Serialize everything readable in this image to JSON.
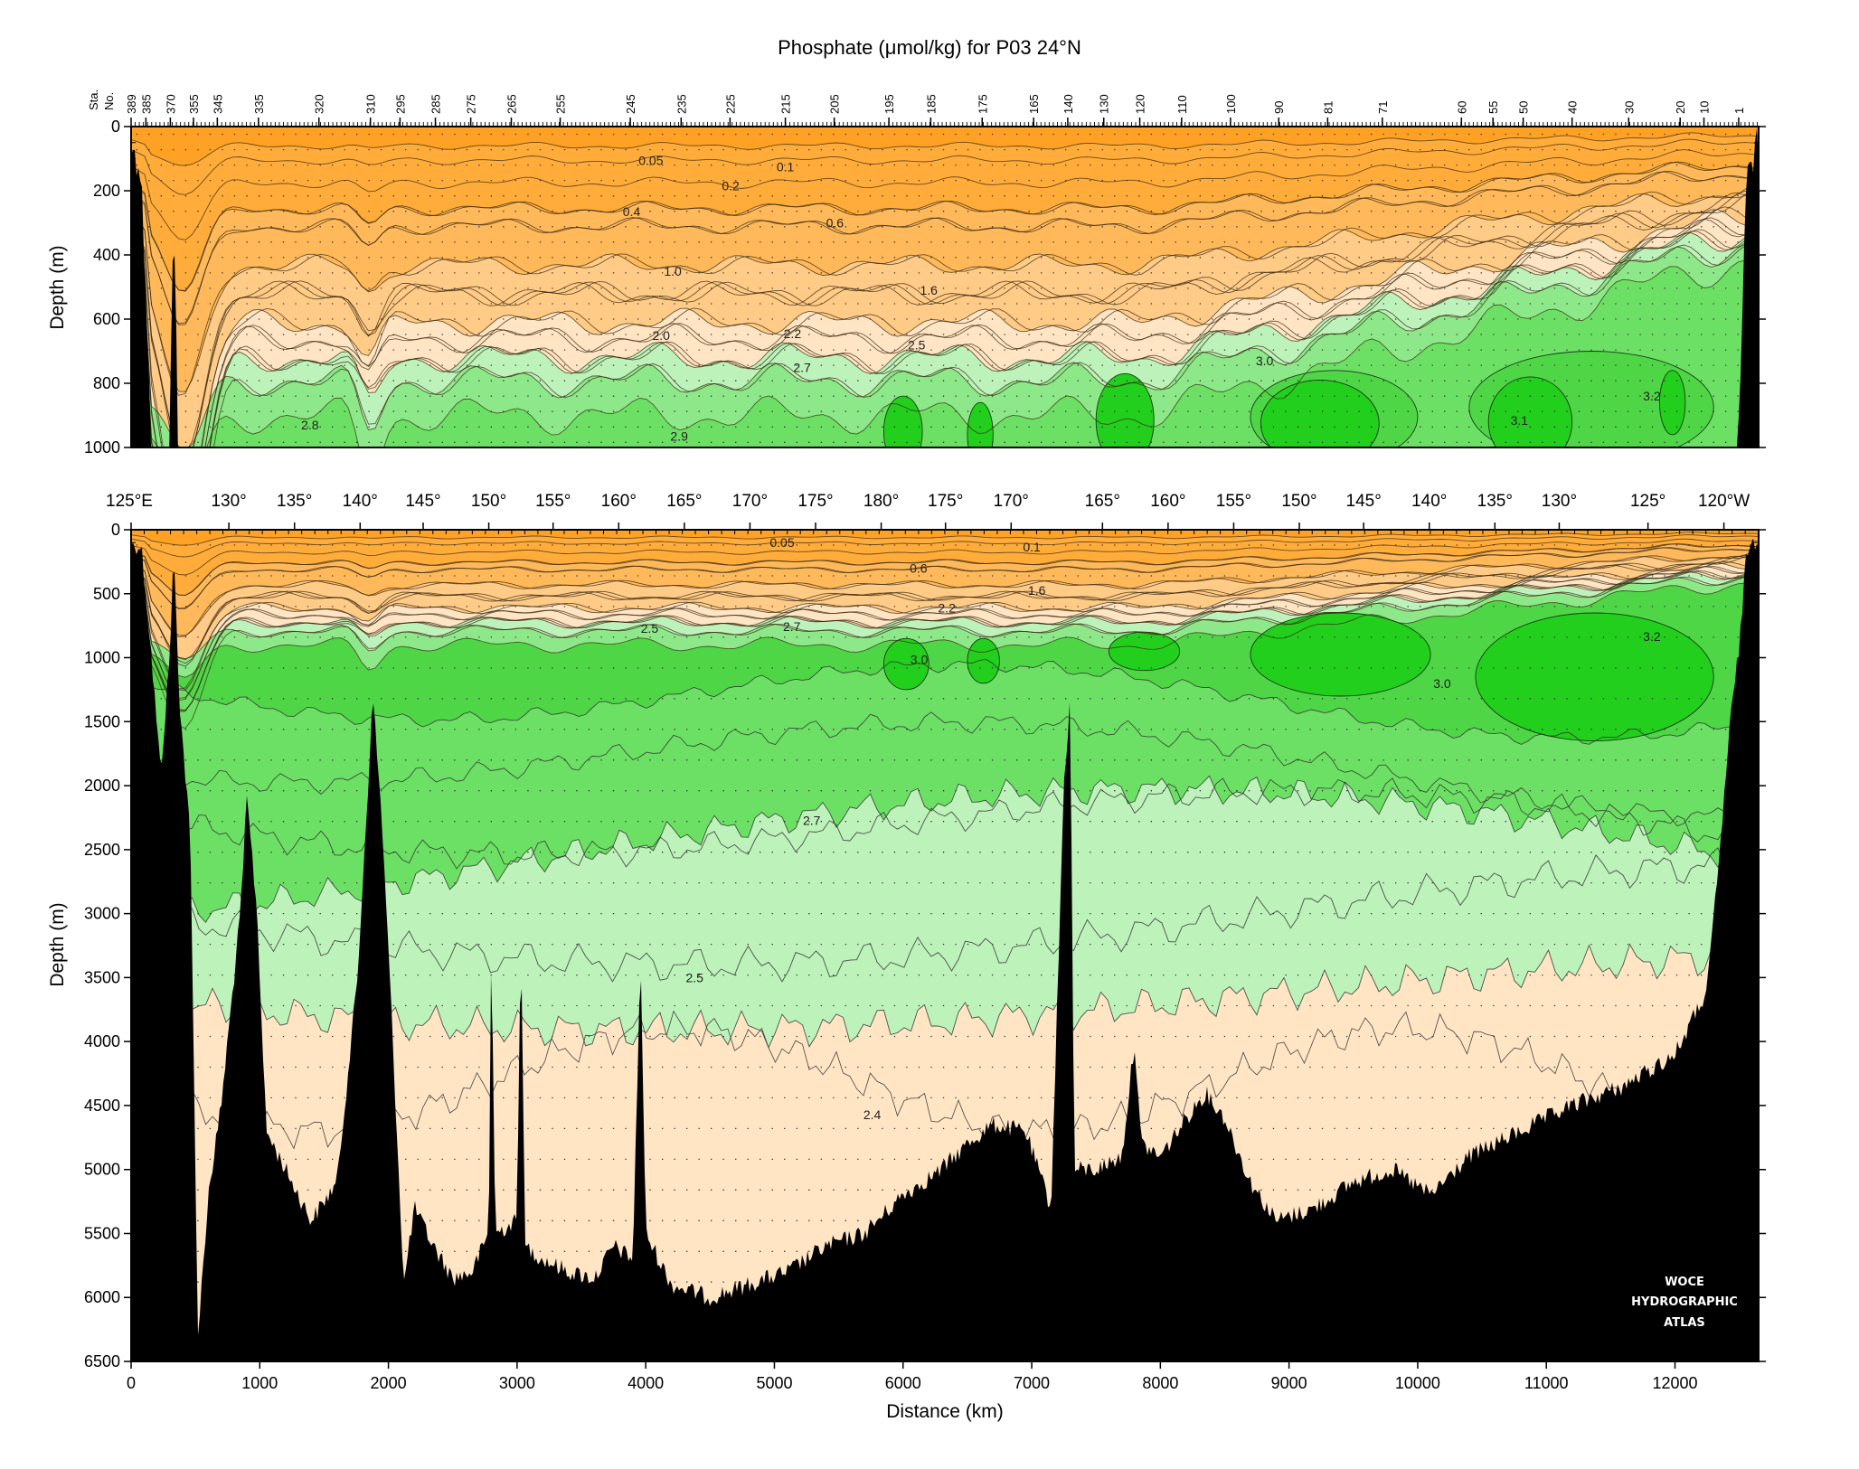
{
  "figure": {
    "title": "Phosphate (μmol/kg) for P03 24°N",
    "watermark": [
      "WOCE",
      "HYDROGRAPHIC",
      "ATLAS"
    ]
  },
  "chart_data": [
    {
      "type": "heatmap",
      "panel": "upper",
      "title": "Phosphate (μmol/kg) for P03 24°N",
      "ylabel": "Depth (m)",
      "ylim": [
        1000,
        0
      ],
      "xlim": [
        0,
        12650
      ],
      "y_ticks": [
        0,
        200,
        400,
        600,
        800,
        1000
      ],
      "station_axis_label": [
        "Sta.",
        "No."
      ],
      "stations": [
        {
          "label": "389",
          "km": 0
        },
        {
          "label": "385",
          "km": 115
        },
        {
          "label": "370",
          "km": 305
        },
        {
          "label": "355",
          "km": 485
        },
        {
          "label": "345",
          "km": 670
        },
        {
          "label": "335",
          "km": 990
        },
        {
          "label": "320",
          "km": 1460
        },
        {
          "label": "310",
          "km": 1860
        },
        {
          "label": "295",
          "km": 2090
        },
        {
          "label": "285",
          "km": 2365
        },
        {
          "label": "275",
          "km": 2640
        },
        {
          "label": "265",
          "km": 2955
        },
        {
          "label": "255",
          "km": 3335
        },
        {
          "label": "245",
          "km": 3880
        },
        {
          "label": "235",
          "km": 4275
        },
        {
          "label": "225",
          "km": 4655
        },
        {
          "label": "215",
          "km": 5085
        },
        {
          "label": "205",
          "km": 5465
        },
        {
          "label": "195",
          "km": 5890
        },
        {
          "label": "185",
          "km": 6215
        },
        {
          "label": "175",
          "km": 6615
        },
        {
          "label": "165",
          "km": 7015
        },
        {
          "label": "140",
          "km": 7280
        },
        {
          "label": "130",
          "km": 7560
        },
        {
          "label": "120",
          "km": 7840
        },
        {
          "label": "110",
          "km": 8165
        },
        {
          "label": "100",
          "km": 8545
        },
        {
          "label": "90",
          "km": 8920
        },
        {
          "label": "81",
          "km": 9300
        },
        {
          "label": "71",
          "km": 9725
        },
        {
          "label": "60",
          "km": 10340
        },
        {
          "label": "55",
          "km": 10585
        },
        {
          "label": "50",
          "km": 10820
        },
        {
          "label": "40",
          "km": 11200
        },
        {
          "label": "30",
          "km": 11640
        },
        {
          "label": "20",
          "km": 12040
        },
        {
          "label": "10",
          "km": 12225
        },
        {
          "label": "1",
          "km": 12495
        }
      ],
      "contour_labels": [
        {
          "text": "0.05",
          "km": 4040,
          "depth": 105
        },
        {
          "text": "0.1",
          "km": 5085,
          "depth": 125
        },
        {
          "text": "0.2",
          "km": 4660,
          "depth": 185
        },
        {
          "text": "0.4",
          "km": 3890,
          "depth": 265
        },
        {
          "text": "0.6",
          "km": 5470,
          "depth": 300
        },
        {
          "text": "1.0",
          "km": 4210,
          "depth": 450
        },
        {
          "text": "1.6",
          "km": 6200,
          "depth": 510
        },
        {
          "text": "2.0",
          "km": 4120,
          "depth": 650
        },
        {
          "text": "2.2",
          "km": 5140,
          "depth": 645
        },
        {
          "text": "2.5",
          "km": 6105,
          "depth": 680
        },
        {
          "text": "2.7",
          "km": 5215,
          "depth": 750
        },
        {
          "text": "3.0",
          "km": 8810,
          "depth": 730
        },
        {
          "text": "2.8",
          "km": 1390,
          "depth": 930
        },
        {
          "text": "2.9",
          "km": 4260,
          "depth": 965
        },
        {
          "text": "3.1",
          "km": 10790,
          "depth": 915
        },
        {
          "text": "3.2",
          "km": 11820,
          "depth": 840
        }
      ]
    },
    {
      "type": "heatmap",
      "panel": "lower",
      "xlabel": "Distance (km)",
      "ylabel": "Depth (m)",
      "xlim": [
        0,
        12650
      ],
      "ylim": [
        6500,
        0
      ],
      "x_ticks": [
        0,
        1000,
        2000,
        3000,
        4000,
        5000,
        6000,
        7000,
        8000,
        9000,
        10000,
        11000,
        12000
      ],
      "y_ticks": [
        0,
        500,
        1000,
        1500,
        2000,
        2500,
        3000,
        3500,
        4000,
        4500,
        5000,
        5500,
        6000,
        6500
      ],
      "longitudes": [
        {
          "label": "125°E",
          "km": 0
        },
        {
          "label": "130°",
          "km": 760
        },
        {
          "label": "135°",
          "km": 1270
        },
        {
          "label": "140°",
          "km": 1780
        },
        {
          "label": "145°",
          "km": 2270
        },
        {
          "label": "150°",
          "km": 2780
        },
        {
          "label": "155°",
          "km": 3280
        },
        {
          "label": "160°",
          "km": 3790
        },
        {
          "label": "165°",
          "km": 4300
        },
        {
          "label": "170°",
          "km": 4810
        },
        {
          "label": "175°",
          "km": 5320
        },
        {
          "label": "180°",
          "km": 5830
        },
        {
          "label": "175°",
          "km": 6330
        },
        {
          "label": "170°",
          "km": 6840
        },
        {
          "label": "165°",
          "km": 7550
        },
        {
          "label": "160°",
          "km": 8060
        },
        {
          "label": "155°",
          "km": 8570
        },
        {
          "label": "150°",
          "km": 9080
        },
        {
          "label": "145°",
          "km": 9580
        },
        {
          "label": "140°",
          "km": 10090
        },
        {
          "label": "135°",
          "km": 10600
        },
        {
          "label": "130°",
          "km": 11100
        },
        {
          "label": "125°",
          "km": 11790
        },
        {
          "label": "120°W",
          "km": 12380
        }
      ],
      "contour_labels": [
        {
          "text": "0.05",
          "km": 5060,
          "depth": 100
        },
        {
          "text": "0.1",
          "km": 7000,
          "depth": 135
        },
        {
          "text": "0.6",
          "km": 6120,
          "depth": 300
        },
        {
          "text": "1.6",
          "km": 7040,
          "depth": 475
        },
        {
          "text": "2.2",
          "km": 6340,
          "depth": 610
        },
        {
          "text": "2.5",
          "km": 4030,
          "depth": 770
        },
        {
          "text": "2.7",
          "km": 5135,
          "depth": 755
        },
        {
          "text": "3.0",
          "km": 6125,
          "depth": 1015
        },
        {
          "text": "3.2",
          "km": 11820,
          "depth": 835
        },
        {
          "text": "3.0",
          "km": 10190,
          "depth": 1200
        },
        {
          "text": "2.7",
          "km": 5290,
          "depth": 2270
        },
        {
          "text": "2.5",
          "km": 4380,
          "depth": 3500
        },
        {
          "text": "2.4",
          "km": 5760,
          "depth": 4570
        }
      ]
    }
  ],
  "legend": {
    "colors": {
      "orange_lt05": "#FFA124",
      "orange": "#FFAC3A",
      "orange_mid": "#FFB95A",
      "tan": "#FFCB87",
      "peach": "#FFE5C4",
      "pale_green": "#BDF2BB",
      "light_green": "#8DE88A",
      "mid_green": "#6CE064",
      "green": "#4ED647",
      "bright_green": "#22CF1C",
      "bathymetry": "#000000"
    }
  }
}
